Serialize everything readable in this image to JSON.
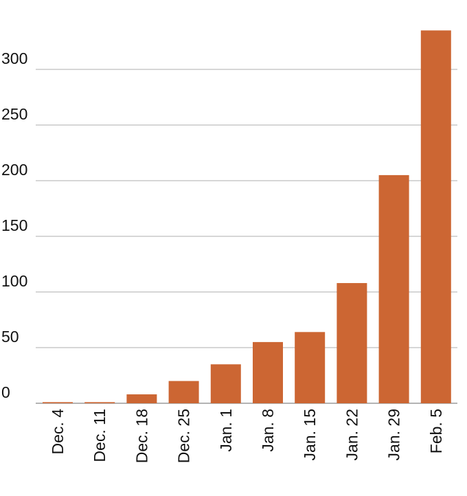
{
  "chart_data": {
    "type": "bar",
    "title": "",
    "xlabel": "",
    "ylabel": "",
    "categories": [
      "Dec. 4",
      "Dec. 11",
      "Dec. 18",
      "Dec. 25",
      "Jan. 1",
      "Jan. 8",
      "Jan. 15",
      "Jan. 22",
      "Jan. 29",
      "Feb. 5"
    ],
    "values": [
      1,
      1,
      8,
      20,
      35,
      55,
      64,
      108,
      205,
      335
    ],
    "ylim": [
      0,
      350
    ],
    "yticks": [
      "0",
      "50",
      "100",
      "150",
      "200",
      "250",
      "300"
    ],
    "ytick_values": [
      0,
      50,
      100,
      150,
      200,
      250,
      300
    ],
    "grid": true,
    "colors": {
      "bar": "#CC6633",
      "grid": "#C8C8C8",
      "text": "#111111"
    }
  }
}
